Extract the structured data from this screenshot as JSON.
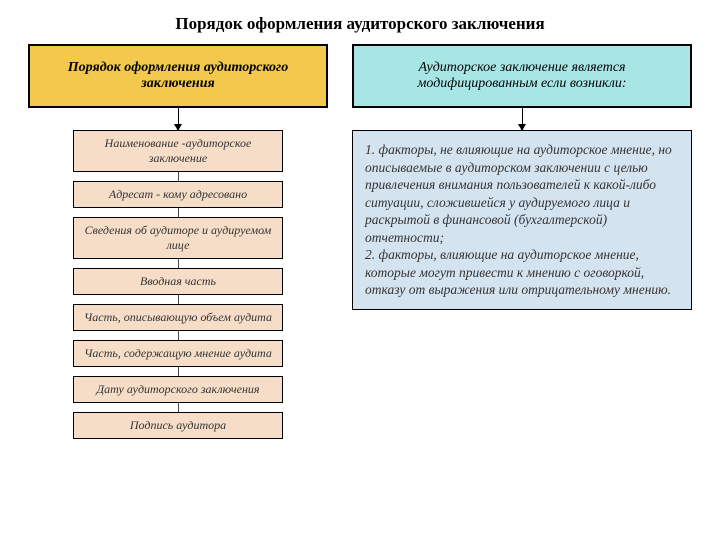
{
  "title": "Порядок оформления аудиторского заключения",
  "left_header": {
    "text": "Порядок оформления аудиторского заключения",
    "bg_color": "#f2c94c",
    "font_weight": "bold"
  },
  "right_header": {
    "text": "Аудиторское заключение является модифицированным если возникли:",
    "bg_color": "#a8e6e6",
    "font_weight": "normal"
  },
  "steps": [
    {
      "label": "Наименование -аудиторское заключение",
      "bg": "#f5ddc8"
    },
    {
      "label": "Адресат - кому адресовано",
      "bg": "#f5ddc8"
    },
    {
      "label": "Сведения об аудиторе и аудируемом лице",
      "bg": "#f5ddc8"
    },
    {
      "label": "Вводная часть",
      "bg": "#f5ddc8"
    },
    {
      "label": "Часть, описывающую объем аудита",
      "bg": "#f5ddc8"
    },
    {
      "label": "Часть, содержащую мнение аудита",
      "bg": "#f5ddc8"
    },
    {
      "label": "Дату аудиторского заключения",
      "bg": "#f5ddc8"
    },
    {
      "label": "Подпись аудитора",
      "bg": "#f5ddc8"
    }
  ],
  "factors_text": "1. факторы, не влияющие на аудиторское мнение, но описываемые в аудиторском заключении с целью привлечения внимания пользователей к какой-либо ситуации, сложившейся у аудируемого лица и раскрытой в финансовой (бухгалтерской) отчетности;\n2. факторы, влияющие на аудиторское мнение, которые могут привести к мнению с оговоркой, отказу от выражения или отрицательному мнению.",
  "factors_bg": "#d4e3f0",
  "arrow_height_main": 22,
  "connector_height": 9
}
